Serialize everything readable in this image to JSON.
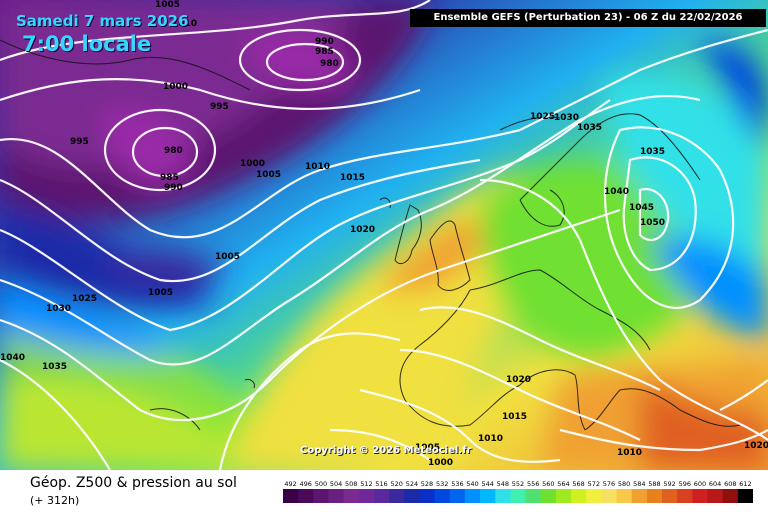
{
  "header": {
    "date": "Samedi 7 mars 2026",
    "time": "7:00 locale",
    "model": "Ensemble GEFS  (Perturbation 23)  -  06 Z du 22/02/2026"
  },
  "copyright": "Copyright © 2026 Meteociel.fr",
  "footer": {
    "title": "Géop. Z500 & pression au sol",
    "lead_time": "(+ 312h)"
  },
  "legend": {
    "labels": [
      "492",
      "496",
      "500",
      "504",
      "508",
      "512",
      "516",
      "520",
      "524",
      "528",
      "532",
      "536",
      "540",
      "544",
      "548",
      "552",
      "556",
      "560",
      "564",
      "568",
      "572",
      "576",
      "580",
      "584",
      "588",
      "592",
      "596",
      "600",
      "604",
      "608",
      "612"
    ],
    "colors": [
      "#3a0045",
      "#4a0a5a",
      "#5c1670",
      "#6a2080",
      "#7a2a90",
      "#70289a",
      "#5a2a9c",
      "#3a2a9e",
      "#1c2aa8",
      "#0a30c8",
      "#0048e0",
      "#0066f0",
      "#0090ff",
      "#00b8ff",
      "#30e0e8",
      "#40f0b0",
      "#50e070",
      "#70e030",
      "#a0e820",
      "#d0f020",
      "#f0f040",
      "#f8e060",
      "#f8c848",
      "#f0a030",
      "#e88020",
      "#e06020",
      "#d84020",
      "#d02020",
      "#b81818",
      "#901010",
      "#000000"
    ]
  },
  "isobars": [
    {
      "text": "1005"
    },
    {
      "text": "1010"
    },
    {
      "text": "990"
    },
    {
      "text": "985"
    },
    {
      "text": "980"
    },
    {
      "text": "1000"
    },
    {
      "text": "995"
    },
    {
      "text": "995"
    },
    {
      "text": "980"
    },
    {
      "text": "985"
    },
    {
      "text": "990"
    },
    {
      "text": "1000"
    },
    {
      "text": "1005"
    },
    {
      "text": "1010"
    },
    {
      "text": "1015"
    },
    {
      "text": "1020"
    },
    {
      "text": "1005"
    },
    {
      "text": "1005"
    },
    {
      "text": "1025"
    },
    {
      "text": "1030"
    },
    {
      "text": "1035"
    },
    {
      "text": "1040"
    },
    {
      "text": "1025"
    },
    {
      "text": "1030"
    },
    {
      "text": "1035"
    },
    {
      "text": "1035"
    },
    {
      "text": "1040"
    },
    {
      "text": "1045"
    },
    {
      "text": "1050"
    },
    {
      "text": "1020"
    },
    {
      "text": "1015"
    },
    {
      "text": "1010"
    },
    {
      "text": "1005"
    },
    {
      "text": "1000"
    },
    {
      "text": "1010"
    },
    {
      "text": "1020"
    }
  ]
}
